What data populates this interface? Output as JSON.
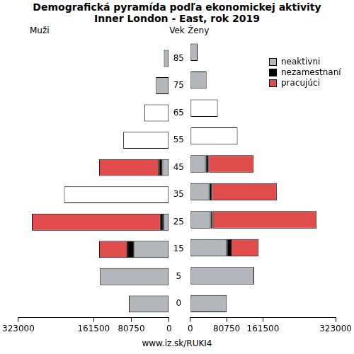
{
  "title": [
    "Demografická pyramída podľa ekonomickej aktivity",
    "Inner London - East, rok 2019"
  ],
  "y_label": "Vek",
  "source": "www.iz.sk/RUKI4",
  "chart_data": [
    {
      "type": "bar",
      "title": "Muži",
      "orientation": "horizontal",
      "stacked": true,
      "grid": false,
      "categories": [
        "85",
        "75",
        "65",
        "55",
        "45",
        "35",
        "25",
        "15",
        "5",
        "0"
      ],
      "xlim": [
        323000,
        0
      ],
      "xticks": [
        323000,
        161500,
        80750,
        0
      ],
      "series": [
        {
          "name": "neaktivni",
          "color": "#b3b6bb",
          "values": [
            11000,
            28000,
            null,
            null,
            14000,
            null,
            12000,
            75000,
            148000,
            86000
          ]
        },
        {
          "name": "nezamestnaní",
          "color": "#000000",
          "values": [
            null,
            null,
            null,
            null,
            8000,
            null,
            6000,
            14000,
            null,
            null
          ]
        },
        {
          "name": "pracujúci",
          "color": "#e04c4c",
          "values": [
            null,
            null,
            null,
            null,
            128000,
            null,
            276000,
            61000,
            null,
            null
          ]
        },
        {
          "color": "#ffffff",
          "values": [
            null,
            null,
            53000,
            98000,
            null,
            225000,
            null,
            null,
            null,
            null
          ]
        }
      ]
    },
    {
      "type": "bar",
      "title": "Ženy",
      "orientation": "horizontal",
      "stacked": true,
      "grid": false,
      "tick_labels": "x",
      "legend": "upper right",
      "categories": [
        "85",
        "75",
        "65",
        "55",
        "45",
        "35",
        "25",
        "15",
        "5",
        "0"
      ],
      "xlim": [
        0,
        323000
      ],
      "xticks": [
        0,
        80750,
        161500,
        323000
      ],
      "series": [
        {
          "name": "neaktivni",
          "color": "#b3b6bb",
          "values": [
            16000,
            36000,
            null,
            null,
            34000,
            42000,
            45000,
            81000,
            142000,
            81000
          ]
        },
        {
          "name": "nezamestnaní",
          "color": "#000000",
          "values": [
            null,
            null,
            null,
            null,
            6000,
            6000,
            5000,
            9000,
            null,
            null
          ]
        },
        {
          "name": "pracujúci",
          "color": "#e04c4c",
          "values": [
            null,
            null,
            null,
            null,
            101000,
            144000,
            231000,
            62000,
            null,
            null
          ]
        },
        {
          "color": "#ffffff",
          "values": [
            null,
            null,
            61000,
            105000,
            null,
            null,
            null,
            null,
            null,
            null
          ]
        }
      ]
    }
  ]
}
